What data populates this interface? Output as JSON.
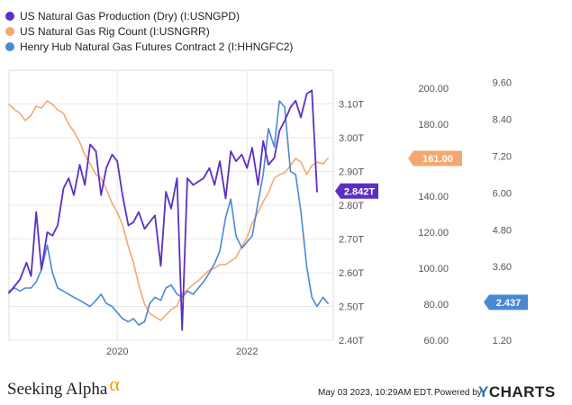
{
  "colors": {
    "production": "#5c2fc2",
    "rig_count": "#f5a773",
    "henry_hub": "#4a88d4",
    "grid": "#e8e8e8",
    "axis_text": "#555555",
    "plot_border": "#dddddd",
    "brand_alpha": "#f2a100",
    "ycharts_y": "#2f6fc5"
  },
  "footer": {
    "brand": "Seeking Alpha",
    "brand_symbol": "α",
    "date": "May 03 2023, 10:29AM EDT.",
    "powered_by": "Powered by",
    "ycharts_y": "Y",
    "ycharts_rest": "CHARTS"
  },
  "chart_data": {
    "type": "line",
    "title": "",
    "x_ticks": [
      "2020",
      "2022"
    ],
    "x_tick_values": [
      2020.0,
      2022.0
    ],
    "xlim": [
      2018.33,
      2023.33
    ],
    "legend_position": "top-left",
    "grid": true,
    "axes": {
      "production": {
        "ylim": [
          2.4,
          3.2
        ],
        "ticks": [
          "2.40T",
          "2.50T",
          "2.60T",
          "2.70T",
          "2.80T",
          "2.90T",
          "3.00T",
          "3.10T"
        ],
        "tick_values": [
          2.4,
          2.5,
          2.6,
          2.7,
          2.8,
          2.9,
          3.0,
          3.1
        ]
      },
      "rig_count": {
        "ylim": [
          60,
          210
        ],
        "ticks": [
          "60.00",
          "80.00",
          "100.00",
          "120.00",
          "140.00",
          "160.00",
          "180.00",
          "200.00"
        ],
        "tick_values": [
          60,
          80,
          100,
          120,
          140,
          160,
          180,
          200
        ]
      },
      "henry_hub": {
        "ylim": [
          1.2,
          10.0
        ],
        "ticks": [
          "1.20",
          "2.40",
          "3.60",
          "4.80",
          "6.00",
          "7.20",
          "8.40",
          "9.60"
        ],
        "tick_values": [
          1.2,
          2.4,
          3.6,
          4.8,
          6.0,
          7.2,
          8.4,
          9.6
        ]
      }
    },
    "series": [
      {
        "key": "production",
        "name": "US Natural Gas Production (Dry) (I:USNGPD)",
        "axis": "production",
        "last_value_label": "2.842T",
        "last_value": 2.842,
        "x": [
          2018.33,
          2018.5,
          2018.6,
          2018.67,
          2018.75,
          2018.83,
          2018.92,
          2019.0,
          2019.08,
          2019.17,
          2019.25,
          2019.33,
          2019.42,
          2019.5,
          2019.58,
          2019.67,
          2019.75,
          2019.83,
          2019.92,
          2020.0,
          2020.08,
          2020.17,
          2020.25,
          2020.33,
          2020.42,
          2020.5,
          2020.58,
          2020.67,
          2020.75,
          2020.83,
          2020.92,
          2021.0,
          2021.08,
          2021.17,
          2021.25,
          2021.33,
          2021.42,
          2021.5,
          2021.58,
          2021.67,
          2021.75,
          2021.83,
          2021.92,
          2022.0,
          2022.08,
          2022.17,
          2022.25,
          2022.33,
          2022.42,
          2022.5,
          2022.58,
          2022.67,
          2022.75,
          2022.83,
          2022.92,
          2023.0,
          2023.08
        ],
        "values": [
          2.54,
          2.58,
          2.63,
          2.59,
          2.78,
          2.61,
          2.72,
          2.71,
          2.74,
          2.85,
          2.88,
          2.83,
          2.92,
          2.86,
          2.98,
          2.96,
          2.83,
          2.91,
          2.95,
          2.93,
          2.83,
          2.74,
          2.75,
          2.78,
          2.73,
          2.75,
          2.77,
          2.62,
          2.84,
          2.79,
          2.88,
          2.43,
          2.88,
          2.86,
          2.87,
          2.88,
          2.91,
          2.86,
          2.93,
          2.82,
          2.96,
          2.93,
          2.95,
          2.91,
          2.97,
          2.86,
          2.99,
          2.92,
          2.94,
          3.02,
          3.05,
          3.09,
          3.11,
          3.06,
          3.13,
          3.14,
          2.84
        ]
      },
      {
        "key": "rig_count",
        "name": "US Natural Gas Rig Count (I:USNGRR)",
        "axis": "rig_count",
        "last_value_label": "161.00",
        "last_value": 161,
        "x": [
          2018.33,
          2018.42,
          2018.5,
          2018.58,
          2018.67,
          2018.75,
          2018.83,
          2018.92,
          2019.0,
          2019.08,
          2019.17,
          2019.25,
          2019.33,
          2019.42,
          2019.5,
          2019.58,
          2019.67,
          2019.75,
          2019.83,
          2019.92,
          2020.0,
          2020.08,
          2020.17,
          2020.25,
          2020.33,
          2020.42,
          2020.5,
          2020.58,
          2020.67,
          2020.75,
          2020.83,
          2020.92,
          2021.0,
          2021.08,
          2021.17,
          2021.25,
          2021.33,
          2021.42,
          2021.5,
          2021.58,
          2021.67,
          2021.75,
          2021.83,
          2021.92,
          2022.0,
          2022.08,
          2022.17,
          2022.25,
          2022.33,
          2022.42,
          2022.5,
          2022.58,
          2022.67,
          2022.75,
          2022.83,
          2022.92,
          2023.0,
          2023.08,
          2023.17,
          2023.25
        ],
        "values": [
          191,
          188,
          186,
          182,
          185,
          190,
          189,
          193,
          191,
          188,
          186,
          180,
          176,
          170,
          163,
          158,
          152,
          150,
          144,
          136,
          131,
          124,
          112,
          103,
          91,
          80,
          75,
          73,
          71,
          74,
          77,
          79,
          86,
          88,
          91,
          93,
          96,
          99,
          100,
          102,
          102,
          104,
          106,
          112,
          117,
          125,
          131,
          137,
          142,
          150,
          152,
          153,
          157,
          161,
          159,
          152,
          157,
          159,
          158,
          161
        ]
      },
      {
        "key": "henry_hub",
        "name": "Henry Hub Natural Gas Futures Contract 2 (I:HHNGFC2)",
        "axis": "henry_hub",
        "last_value_label": "2.437",
        "last_value": 2.437,
        "x": [
          2018.33,
          2018.42,
          2018.5,
          2018.58,
          2018.67,
          2018.75,
          2018.83,
          2018.92,
          2019.0,
          2019.08,
          2019.17,
          2019.25,
          2019.33,
          2019.42,
          2019.5,
          2019.58,
          2019.67,
          2019.75,
          2019.83,
          2019.92,
          2020.0,
          2020.08,
          2020.17,
          2020.25,
          2020.33,
          2020.42,
          2020.5,
          2020.58,
          2020.67,
          2020.75,
          2020.83,
          2020.92,
          2021.0,
          2021.08,
          2021.17,
          2021.25,
          2021.33,
          2021.42,
          2021.5,
          2021.58,
          2021.67,
          2021.75,
          2021.83,
          2021.92,
          2022.0,
          2022.08,
          2022.17,
          2022.25,
          2022.33,
          2022.42,
          2022.5,
          2022.58,
          2022.67,
          2022.75,
          2022.83,
          2022.92,
          2023.0,
          2023.08,
          2023.17,
          2023.25
        ],
        "values": [
          2.8,
          2.9,
          2.8,
          2.9,
          2.9,
          3.1,
          3.5,
          4.3,
          3.4,
          2.9,
          2.8,
          2.7,
          2.6,
          2.5,
          2.4,
          2.3,
          2.5,
          2.7,
          2.4,
          2.3,
          2.1,
          1.9,
          1.8,
          1.9,
          1.7,
          1.8,
          2.4,
          2.6,
          2.5,
          2.9,
          3.0,
          2.7,
          2.6,
          2.8,
          2.7,
          2.9,
          3.1,
          3.4,
          3.7,
          4.1,
          5.2,
          5.8,
          4.6,
          4.2,
          4.4,
          4.6,
          5.7,
          6.6,
          8.1,
          7.5,
          9.0,
          8.8,
          6.7,
          6.6,
          5.4,
          3.6,
          2.6,
          2.3,
          2.6,
          2.4
        ]
      }
    ]
  }
}
